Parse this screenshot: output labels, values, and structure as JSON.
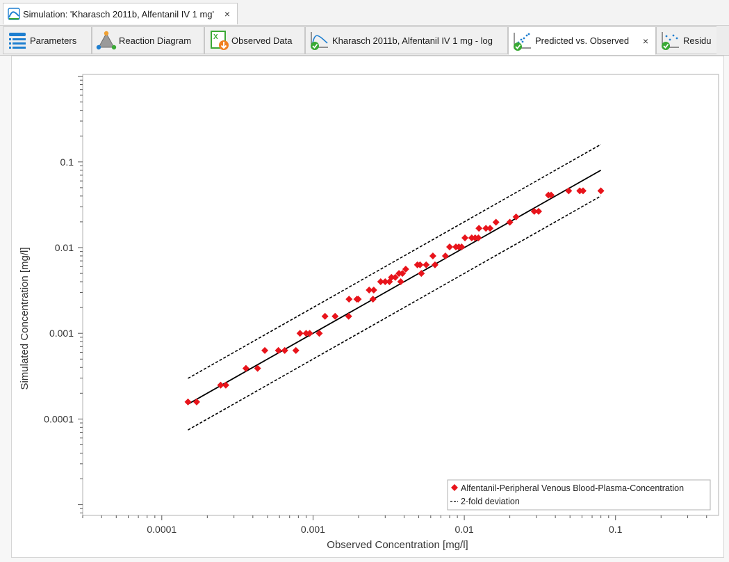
{
  "document_tab": {
    "title": "Simulation: 'Kharasch 2011b, Alfentanil IV 1 mg'",
    "close_glyph": "×"
  },
  "view_tabs": [
    {
      "label": "Parameters",
      "icon": "parameters-list-icon"
    },
    {
      "label": "Reaction Diagram",
      "icon": "reaction-diagram-icon"
    },
    {
      "label": "Observed Data",
      "icon": "excel-import-icon"
    },
    {
      "label": "Kharasch 2011b, Alfentanil IV 1 mg - log",
      "icon": "time-profile-chart-icon"
    },
    {
      "label": "Predicted vs. Observed",
      "icon": "scatter-chart-icon",
      "active": true,
      "close_glyph": "×"
    },
    {
      "label": "Residu",
      "icon": "residuals-chart-icon"
    }
  ],
  "colors": {
    "series": "#e8141b",
    "line": "#000000",
    "accent": "#1e7fd0",
    "check": "#3aa935"
  },
  "chart_data": {
    "type": "scatter",
    "title": "",
    "xlabel": "Observed Concentration [mg/l]",
    "ylabel": "Simulated Concentration [mg/l]",
    "xscale": "log",
    "yscale": "log",
    "xlim": [
      3e-05,
      0.48
    ],
    "ylim": [
      7.5e-06,
      1.05
    ],
    "x_ticks": [
      "0.0001",
      "0.001",
      "0.01",
      "0.1"
    ],
    "y_ticks": [
      "0.0001",
      "0.001",
      "0.01",
      "0.1"
    ],
    "grid": false,
    "legend_position": "bottom-right",
    "series": [
      {
        "name": "Alfentanil-Peripheral Venous Blood-Plasma-Concentration",
        "marker": "diamond",
        "color": "#e8141b",
        "points": [
          [
            0.000149,
            0.000158
          ],
          [
            0.00017,
            0.000158
          ],
          [
            0.000245,
            0.000248
          ],
          [
            0.000265,
            0.000248
          ],
          [
            0.00036,
            0.00039
          ],
          [
            0.00043,
            0.00039
          ],
          [
            0.00048,
            0.00063
          ],
          [
            0.00059,
            0.00063
          ],
          [
            0.00065,
            0.00063
          ],
          [
            0.00077,
            0.00063
          ],
          [
            0.00082,
            0.001
          ],
          [
            0.0009,
            0.001
          ],
          [
            0.00095,
            0.001
          ],
          [
            0.0011,
            0.001
          ],
          [
            0.0012,
            0.00158
          ],
          [
            0.0014,
            0.00158
          ],
          [
            0.00172,
            0.00158
          ],
          [
            0.00173,
            0.0025
          ],
          [
            0.00195,
            0.0025
          ],
          [
            0.00199,
            0.0025
          ],
          [
            0.00235,
            0.0032
          ],
          [
            0.00249,
            0.0025
          ],
          [
            0.00252,
            0.0032
          ],
          [
            0.0028,
            0.004
          ],
          [
            0.003,
            0.004
          ],
          [
            0.0032,
            0.004
          ],
          [
            0.0033,
            0.0045
          ],
          [
            0.0035,
            0.0045
          ],
          [
            0.0037,
            0.005
          ],
          [
            0.0038,
            0.004
          ],
          [
            0.0039,
            0.005
          ],
          [
            0.0041,
            0.0056
          ],
          [
            0.0049,
            0.0063
          ],
          [
            0.0051,
            0.0063
          ],
          [
            0.0052,
            0.005
          ],
          [
            0.0056,
            0.0063
          ],
          [
            0.0062,
            0.008
          ],
          [
            0.0064,
            0.0063
          ],
          [
            0.0075,
            0.008
          ],
          [
            0.008,
            0.0102
          ],
          [
            0.0088,
            0.0102
          ],
          [
            0.0092,
            0.0102
          ],
          [
            0.0096,
            0.0102
          ],
          [
            0.0101,
            0.013
          ],
          [
            0.0112,
            0.013
          ],
          [
            0.0118,
            0.013
          ],
          [
            0.0124,
            0.013
          ],
          [
            0.0125,
            0.0168
          ],
          [
            0.0139,
            0.0168
          ],
          [
            0.0148,
            0.0168
          ],
          [
            0.0162,
            0.0198
          ],
          [
            0.02,
            0.0198
          ],
          [
            0.022,
            0.0228
          ],
          [
            0.029,
            0.0265
          ],
          [
            0.031,
            0.0265
          ],
          [
            0.036,
            0.041
          ],
          [
            0.0375,
            0.041
          ],
          [
            0.049,
            0.046
          ],
          [
            0.058,
            0.046
          ],
          [
            0.061,
            0.046
          ],
          [
            0.08,
            0.046
          ]
        ]
      }
    ],
    "reference_lines": [
      {
        "name": "",
        "kind": "identity",
        "style": "solid",
        "x": [
          0.000149,
          0.08
        ],
        "y": [
          0.000149,
          0.08
        ]
      },
      {
        "name": "2-fold deviation",
        "kind": "upper",
        "style": "dashed",
        "x": [
          0.000149,
          0.08
        ],
        "y": [
          0.000298,
          0.16
        ]
      },
      {
        "name": "",
        "kind": "lower",
        "style": "dashed",
        "x": [
          0.000149,
          0.08
        ],
        "y": [
          7.45e-05,
          0.04
        ]
      }
    ]
  }
}
